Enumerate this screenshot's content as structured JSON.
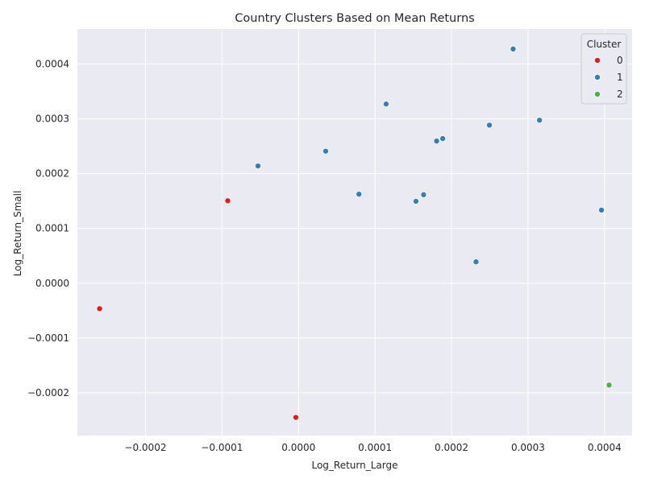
{
  "chart_data": {
    "type": "scatter",
    "title": "Country Clusters Based on Mean Returns",
    "xlabel": "Log_Return_Large",
    "ylabel": "Log_Return_Small",
    "xlim": [
      -0.000289,
      0.000436
    ],
    "ylim": [
      -0.000278,
      0.000464
    ],
    "xticks": [
      -0.0002,
      -0.0001,
      0.0,
      0.0001,
      0.0002,
      0.0003,
      0.0004
    ],
    "xtick_labels": [
      "−0.0002",
      "−0.0001",
      "0.0000",
      "0.0001",
      "0.0002",
      "0.0003",
      "0.0004"
    ],
    "yticks": [
      -0.0002,
      -0.0001,
      0.0,
      0.0001,
      0.0002,
      0.0003,
      0.0004
    ],
    "ytick_labels": [
      "−0.0002",
      "−0.0001",
      "0.0000",
      "0.0001",
      "0.0002",
      "0.0003",
      "0.0004"
    ],
    "grid": true,
    "legend": {
      "title": "Cluster",
      "placement": "top-right",
      "entries": [
        "0",
        "1",
        "2"
      ]
    },
    "colors": {
      "0": "#e41a1c",
      "1": "#377eb8",
      "2": "#4daf4a"
    },
    "background": "#eaeaf2",
    "series": [
      {
        "name": "0",
        "points": [
          {
            "x": -0.00026,
            "y": -4.65e-05
          },
          {
            "x": -9.25e-05,
            "y": 0.0001505
          },
          {
            "x": -3.5e-06,
            "y": -0.000245
          }
        ]
      },
      {
        "name": "1",
        "points": [
          {
            "x": 0.0002805,
            "y": 0.0004275
          },
          {
            "x": 0.0001145,
            "y": 0.000327
          },
          {
            "x": 0.000315,
            "y": 0.0002975
          },
          {
            "x": 0.0002495,
            "y": 0.0002885
          },
          {
            "x": 0.0001885,
            "y": 0.000264
          },
          {
            "x": 0.0001805,
            "y": 0.0002595
          },
          {
            "x": 3.55e-05,
            "y": 0.000241
          },
          {
            "x": -5.3e-05,
            "y": 0.000214
          },
          {
            "x": 7.9e-05,
            "y": 0.0001625
          },
          {
            "x": 0.0001635,
            "y": 0.0001615
          },
          {
            "x": 0.0001535,
            "y": 0.0001495
          },
          {
            "x": 0.000396,
            "y": 0.0001335
          },
          {
            "x": 0.000232,
            "y": 3.9e-05
          }
        ]
      },
      {
        "name": "2",
        "points": [
          {
            "x": 0.000406,
            "y": -0.000186
          }
        ]
      }
    ]
  }
}
